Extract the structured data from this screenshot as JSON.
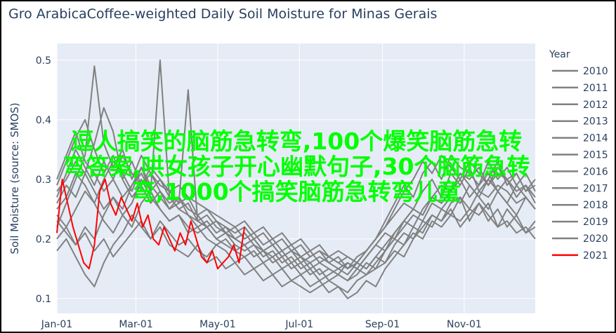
{
  "watermark": "逗人搞笑的脑筋急转弯,100个爆笑脑筋急转弯答案,哄女孩子开心幽默句子,30个脑筋急转弯,1000个搞笑脑筋急转弯儿童",
  "chart_data": {
    "type": "line",
    "title": "Gro ArabicaCoffee-weighted Daily Soil Moisture for Minas Gerais",
    "ylabel": "Soil Moisture (source: SMOS)",
    "xlabel": "",
    "legend_title": "Year",
    "legend_placement": "right",
    "ylim": [
      0.075,
      0.528
    ],
    "xlim": [
      "Jan-01",
      "Dec-24"
    ],
    "yticks": [
      0.1,
      0.2,
      0.3,
      0.4,
      0.5
    ],
    "xticks": [
      "Jan-01",
      "Mar-01",
      "May-01",
      "Jul-01",
      "Sep-01",
      "Nov-01"
    ],
    "grid": true,
    "colors": {
      "past": "#808080",
      "current": "#ff0000",
      "plot_bg": "#e5ecf6",
      "text": "#2a3f5f"
    },
    "x": [
      "Jan-01",
      "Jan-08",
      "Jan-15",
      "Jan-22",
      "Jan-29",
      "Feb-05",
      "Feb-12",
      "Feb-19",
      "Feb-26",
      "Mar-05",
      "Mar-12",
      "Mar-19",
      "Mar-26",
      "Apr-02",
      "Apr-09",
      "Apr-16",
      "Apr-23",
      "Apr-30",
      "May-07",
      "May-14",
      "May-21",
      "May-28",
      "Jun-04",
      "Jun-11",
      "Jun-18",
      "Jun-25",
      "Jul-02",
      "Jul-09",
      "Jul-16",
      "Jul-23",
      "Jul-30",
      "Aug-06",
      "Aug-13",
      "Aug-20",
      "Aug-27",
      "Sep-03",
      "Sep-10",
      "Sep-17",
      "Sep-24",
      "Oct-01",
      "Oct-08",
      "Oct-15",
      "Oct-22",
      "Oct-29",
      "Nov-05",
      "Nov-12",
      "Nov-19",
      "Nov-26",
      "Dec-03",
      "Dec-10",
      "Dec-17",
      "Dec-24"
    ],
    "series": [
      {
        "name": "2010",
        "values": [
          0.28,
          0.3,
          0.33,
          0.31,
          0.36,
          0.42,
          0.38,
          0.3,
          0.33,
          0.29,
          0.31,
          0.28,
          0.26,
          0.27,
          0.25,
          0.24,
          0.22,
          0.23,
          0.21,
          0.2,
          0.21,
          0.19,
          0.18,
          0.19,
          0.17,
          0.18,
          0.17,
          0.16,
          0.17,
          0.16,
          0.15,
          0.16,
          0.15,
          0.14,
          0.15,
          0.16,
          0.18,
          0.17,
          0.2,
          0.22,
          0.24,
          0.23,
          0.26,
          0.27,
          0.25,
          0.28,
          0.27,
          0.29,
          0.28,
          0.26,
          0.27,
          0.25
        ]
      },
      {
        "name": "2011",
        "values": [
          0.22,
          0.26,
          0.3,
          0.34,
          0.49,
          0.36,
          0.32,
          0.35,
          0.3,
          0.34,
          0.31,
          0.29,
          0.28,
          0.26,
          0.27,
          0.24,
          0.25,
          0.23,
          0.22,
          0.21,
          0.22,
          0.2,
          0.21,
          0.19,
          0.2,
          0.18,
          0.19,
          0.17,
          0.18,
          0.17,
          0.16,
          0.17,
          0.16,
          0.15,
          0.17,
          0.19,
          0.21,
          0.23,
          0.22,
          0.25,
          0.27,
          0.29,
          0.28,
          0.31,
          0.3,
          0.32,
          0.29,
          0.31,
          0.3,
          0.28,
          0.29,
          0.27
        ]
      },
      {
        "name": "2012",
        "values": [
          0.18,
          0.2,
          0.17,
          0.14,
          0.12,
          0.16,
          0.19,
          0.21,
          0.24,
          0.22,
          0.2,
          0.23,
          0.21,
          0.19,
          0.2,
          0.18,
          0.17,
          0.19,
          0.18,
          0.16,
          0.17,
          0.15,
          0.16,
          0.14,
          0.15,
          0.13,
          0.14,
          0.12,
          0.13,
          0.11,
          0.12,
          0.1,
          0.11,
          0.13,
          0.12,
          0.15,
          0.17,
          0.19,
          0.21,
          0.2,
          0.23,
          0.22,
          0.24,
          0.23,
          0.25,
          0.24,
          0.26,
          0.22,
          0.23,
          0.21,
          0.22,
          0.2
        ]
      },
      {
        "name": "2013",
        "values": [
          0.25,
          0.27,
          0.31,
          0.29,
          0.26,
          0.3,
          0.33,
          0.31,
          0.28,
          0.32,
          0.29,
          0.27,
          0.25,
          0.26,
          0.45,
          0.23,
          0.24,
          0.22,
          0.21,
          0.22,
          0.2,
          0.21,
          0.19,
          0.2,
          0.18,
          0.19,
          0.17,
          0.18,
          0.16,
          0.17,
          0.16,
          0.15,
          0.17,
          0.18,
          0.2,
          0.22,
          0.25,
          0.28,
          0.3,
          0.33,
          0.31,
          0.34,
          0.32,
          0.3,
          0.33,
          0.31,
          0.29,
          0.32,
          0.3,
          0.31,
          0.28,
          0.29
        ]
      },
      {
        "name": "2014",
        "values": [
          0.2,
          0.22,
          0.19,
          0.21,
          0.18,
          0.2,
          0.17,
          0.19,
          0.21,
          0.23,
          0.2,
          0.22,
          0.19,
          0.18,
          0.17,
          0.19,
          0.16,
          0.17,
          0.15,
          0.16,
          0.14,
          0.15,
          0.13,
          0.14,
          0.12,
          0.13,
          0.12,
          0.11,
          0.12,
          0.13,
          0.12,
          0.11,
          0.13,
          0.14,
          0.16,
          0.18,
          0.2,
          0.19,
          0.22,
          0.21,
          0.24,
          0.23,
          0.25,
          0.22,
          0.24,
          0.26,
          0.23,
          0.25,
          0.22,
          0.24,
          0.21,
          0.23
        ]
      },
      {
        "name": "2015",
        "values": [
          0.23,
          0.21,
          0.19,
          0.22,
          0.2,
          0.24,
          0.27,
          0.25,
          0.29,
          0.31,
          0.28,
          0.3,
          0.27,
          0.25,
          0.26,
          0.23,
          0.22,
          0.2,
          0.21,
          0.19,
          0.18,
          0.19,
          0.17,
          0.18,
          0.16,
          0.17,
          0.15,
          0.16,
          0.14,
          0.15,
          0.14,
          0.13,
          0.15,
          0.17,
          0.19,
          0.18,
          0.21,
          0.23,
          0.25,
          0.24,
          0.27,
          0.26,
          0.28,
          0.3,
          0.27,
          0.29,
          0.31,
          0.28,
          0.3,
          0.27,
          0.29,
          0.26
        ]
      },
      {
        "name": "2016",
        "values": [
          0.3,
          0.34,
          0.38,
          0.33,
          0.31,
          0.28,
          0.3,
          0.27,
          0.29,
          0.32,
          0.28,
          0.5,
          0.27,
          0.25,
          0.24,
          0.22,
          0.23,
          0.21,
          0.22,
          0.2,
          0.19,
          0.2,
          0.18,
          0.19,
          0.17,
          0.18,
          0.16,
          0.17,
          0.18,
          0.16,
          0.17,
          0.15,
          0.16,
          0.18,
          0.2,
          0.22,
          0.24,
          0.26,
          0.25,
          0.28,
          0.3,
          0.27,
          0.31,
          0.29,
          0.32,
          0.28,
          0.3,
          0.33,
          0.29,
          0.31,
          0.28,
          0.3
        ]
      },
      {
        "name": "2017",
        "values": [
          0.26,
          0.29,
          0.27,
          0.31,
          0.28,
          0.25,
          0.27,
          0.24,
          0.26,
          0.3,
          0.27,
          0.25,
          0.23,
          0.24,
          0.22,
          0.21,
          0.22,
          0.2,
          0.19,
          0.18,
          0.19,
          0.17,
          0.18,
          0.16,
          0.17,
          0.15,
          0.16,
          0.14,
          0.15,
          0.13,
          0.14,
          0.13,
          0.14,
          0.16,
          0.15,
          0.18,
          0.2,
          0.22,
          0.24,
          0.23,
          0.26,
          0.25,
          0.27,
          0.26,
          0.29,
          0.27,
          0.25,
          0.28,
          0.26,
          0.24,
          0.27,
          0.25
        ]
      },
      {
        "name": "2018",
        "values": [
          0.27,
          0.31,
          0.35,
          0.32,
          0.29,
          0.33,
          0.3,
          0.34,
          0.31,
          0.29,
          0.32,
          0.3,
          0.28,
          0.29,
          0.27,
          0.26,
          0.25,
          0.24,
          0.23,
          0.22,
          0.23,
          0.21,
          0.22,
          0.2,
          0.21,
          0.19,
          0.2,
          0.18,
          0.19,
          0.17,
          0.18,
          0.17,
          0.16,
          0.18,
          0.2,
          0.23,
          0.26,
          0.29,
          0.27,
          0.31,
          0.33,
          0.3,
          0.34,
          0.32,
          0.31,
          0.29,
          0.33,
          0.3,
          0.32,
          0.29,
          0.31,
          0.28
        ]
      },
      {
        "name": "2019",
        "values": [
          0.24,
          0.22,
          0.25,
          0.28,
          0.26,
          0.23,
          0.21,
          0.24,
          0.22,
          0.26,
          0.28,
          0.25,
          0.23,
          0.24,
          0.21,
          0.22,
          0.2,
          0.19,
          0.2,
          0.18,
          0.17,
          0.18,
          0.16,
          0.17,
          0.15,
          0.16,
          0.14,
          0.15,
          0.13,
          0.14,
          0.15,
          0.14,
          0.16,
          0.15,
          0.17,
          0.16,
          0.19,
          0.21,
          0.2,
          0.23,
          0.22,
          0.25,
          0.24,
          0.27,
          0.23,
          0.26,
          0.24,
          0.22,
          0.25,
          0.23,
          0.21,
          0.22
        ]
      },
      {
        "name": "2020",
        "values": [
          0.29,
          0.33,
          0.37,
          0.4,
          0.35,
          0.31,
          0.34,
          0.3,
          0.27,
          0.29,
          0.26,
          0.28,
          0.25,
          0.27,
          0.24,
          0.23,
          0.22,
          0.23,
          0.21,
          0.2,
          0.19,
          0.2,
          0.18,
          0.17,
          0.18,
          0.16,
          0.17,
          0.15,
          0.16,
          0.15,
          0.14,
          0.16,
          0.15,
          0.17,
          0.19,
          0.21,
          0.2,
          0.23,
          0.25,
          0.24,
          0.27,
          0.26,
          0.28,
          0.31,
          0.29,
          0.27,
          0.3,
          0.28,
          0.26,
          0.29,
          0.27,
          0.25
        ]
      },
      {
        "name": "2021",
        "x": [
          "Jan-01",
          "Jan-05",
          "Jan-09",
          "Jan-13",
          "Jan-17",
          "Jan-21",
          "Jan-25",
          "Jan-29",
          "Feb-02",
          "Feb-06",
          "Feb-10",
          "Feb-14",
          "Feb-18",
          "Feb-22",
          "Feb-26",
          "Mar-02",
          "Mar-06",
          "Mar-10",
          "Mar-14",
          "Mar-18",
          "Mar-22",
          "Mar-26",
          "Mar-30",
          "Apr-03",
          "Apr-07",
          "Apr-11",
          "Apr-15",
          "Apr-19",
          "Apr-23",
          "Apr-27",
          "May-01",
          "May-05",
          "May-09",
          "May-13",
          "May-17",
          "May-21"
        ],
        "values": [
          0.21,
          0.3,
          0.26,
          0.22,
          0.19,
          0.16,
          0.15,
          0.19,
          0.28,
          0.3,
          0.26,
          0.24,
          0.27,
          0.25,
          0.23,
          0.26,
          0.22,
          0.24,
          0.2,
          0.19,
          0.22,
          0.2,
          0.18,
          0.21,
          0.19,
          0.23,
          0.2,
          0.17,
          0.16,
          0.18,
          0.15,
          0.16,
          0.17,
          0.19,
          0.16,
          0.22
        ]
      }
    ]
  }
}
